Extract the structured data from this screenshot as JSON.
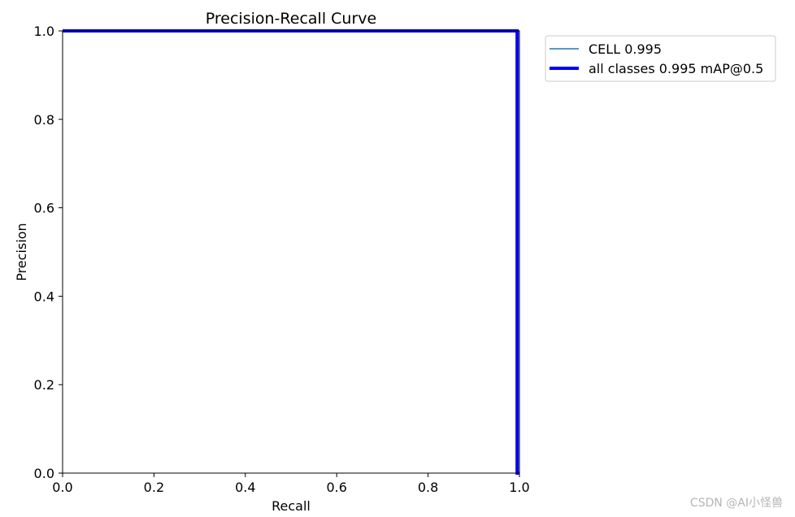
{
  "chart_data": {
    "type": "line",
    "title": "Precision-Recall Curve",
    "xlabel": "Recall",
    "ylabel": "Precision",
    "xlim": [
      0.0,
      1.0
    ],
    "ylim": [
      0.0,
      1.0
    ],
    "x_ticks": [
      "0.0",
      "0.2",
      "0.4",
      "0.6",
      "0.8",
      "1.0"
    ],
    "y_ticks": [
      "0.0",
      "0.2",
      "0.4",
      "0.6",
      "0.8",
      "1.0"
    ],
    "grid": false,
    "legend_position": "outside-top-right",
    "series": [
      {
        "name": "CELL 0.995",
        "color": "#1f77b4",
        "x": [
          0.0,
          0.995,
          0.995,
          1.0
        ],
        "y": [
          1.0,
          1.0,
          0.0,
          0.0
        ]
      },
      {
        "name": "all classes 0.995 mAP@0.5",
        "color": "#0000ff",
        "x": [
          0.0,
          0.995,
          0.995,
          1.0
        ],
        "y": [
          1.0,
          1.0,
          0.0,
          0.0
        ]
      }
    ]
  },
  "watermark": "CSDN @AI小怪兽"
}
